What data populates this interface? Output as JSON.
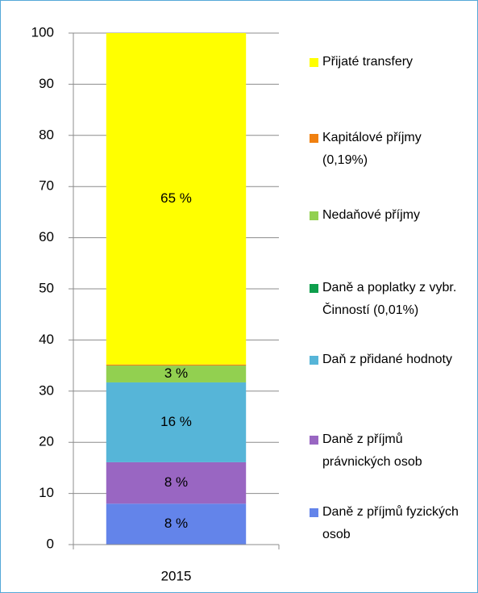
{
  "chart_data": {
    "type": "bar",
    "stacked": true,
    "categories": [
      "2015"
    ],
    "series": [
      {
        "name": "Daně z příjmů fyzických osob",
        "color": "#6384ea",
        "values": [
          8
        ],
        "value_labels": [
          "8 %"
        ]
      },
      {
        "name": "Daně z příjmů právnických osob",
        "color": "#9966c2",
        "values": [
          8.1
        ],
        "value_labels": [
          "8 %"
        ]
      },
      {
        "name": "Daň z přidané hodnoty",
        "color": "#56b5d8",
        "values": [
          15.6
        ],
        "value_labels": [
          "16 %"
        ]
      },
      {
        "name": "Daně a poplatky z vybr. Činností (0,01%)",
        "color": "#0e9e4c",
        "values": [
          0.01
        ]
      },
      {
        "name": "Nedaňové příjmy",
        "color": "#92d050",
        "values": [
          3.3
        ],
        "value_labels": [
          "3 %"
        ]
      },
      {
        "name": "Kapitálové příjmy (0,19%)",
        "color": "#f08010",
        "values": [
          0.19
        ]
      },
      {
        "name": "Přijaté transfery",
        "color": "#ffff00",
        "values": [
          64.8
        ],
        "value_labels": [
          "65 %"
        ]
      }
    ],
    "ylim": [
      0,
      100
    ],
    "yticks": [
      0,
      10,
      20,
      30,
      40,
      50,
      60,
      70,
      80,
      90,
      100
    ],
    "grid": true,
    "legend": "right"
  }
}
